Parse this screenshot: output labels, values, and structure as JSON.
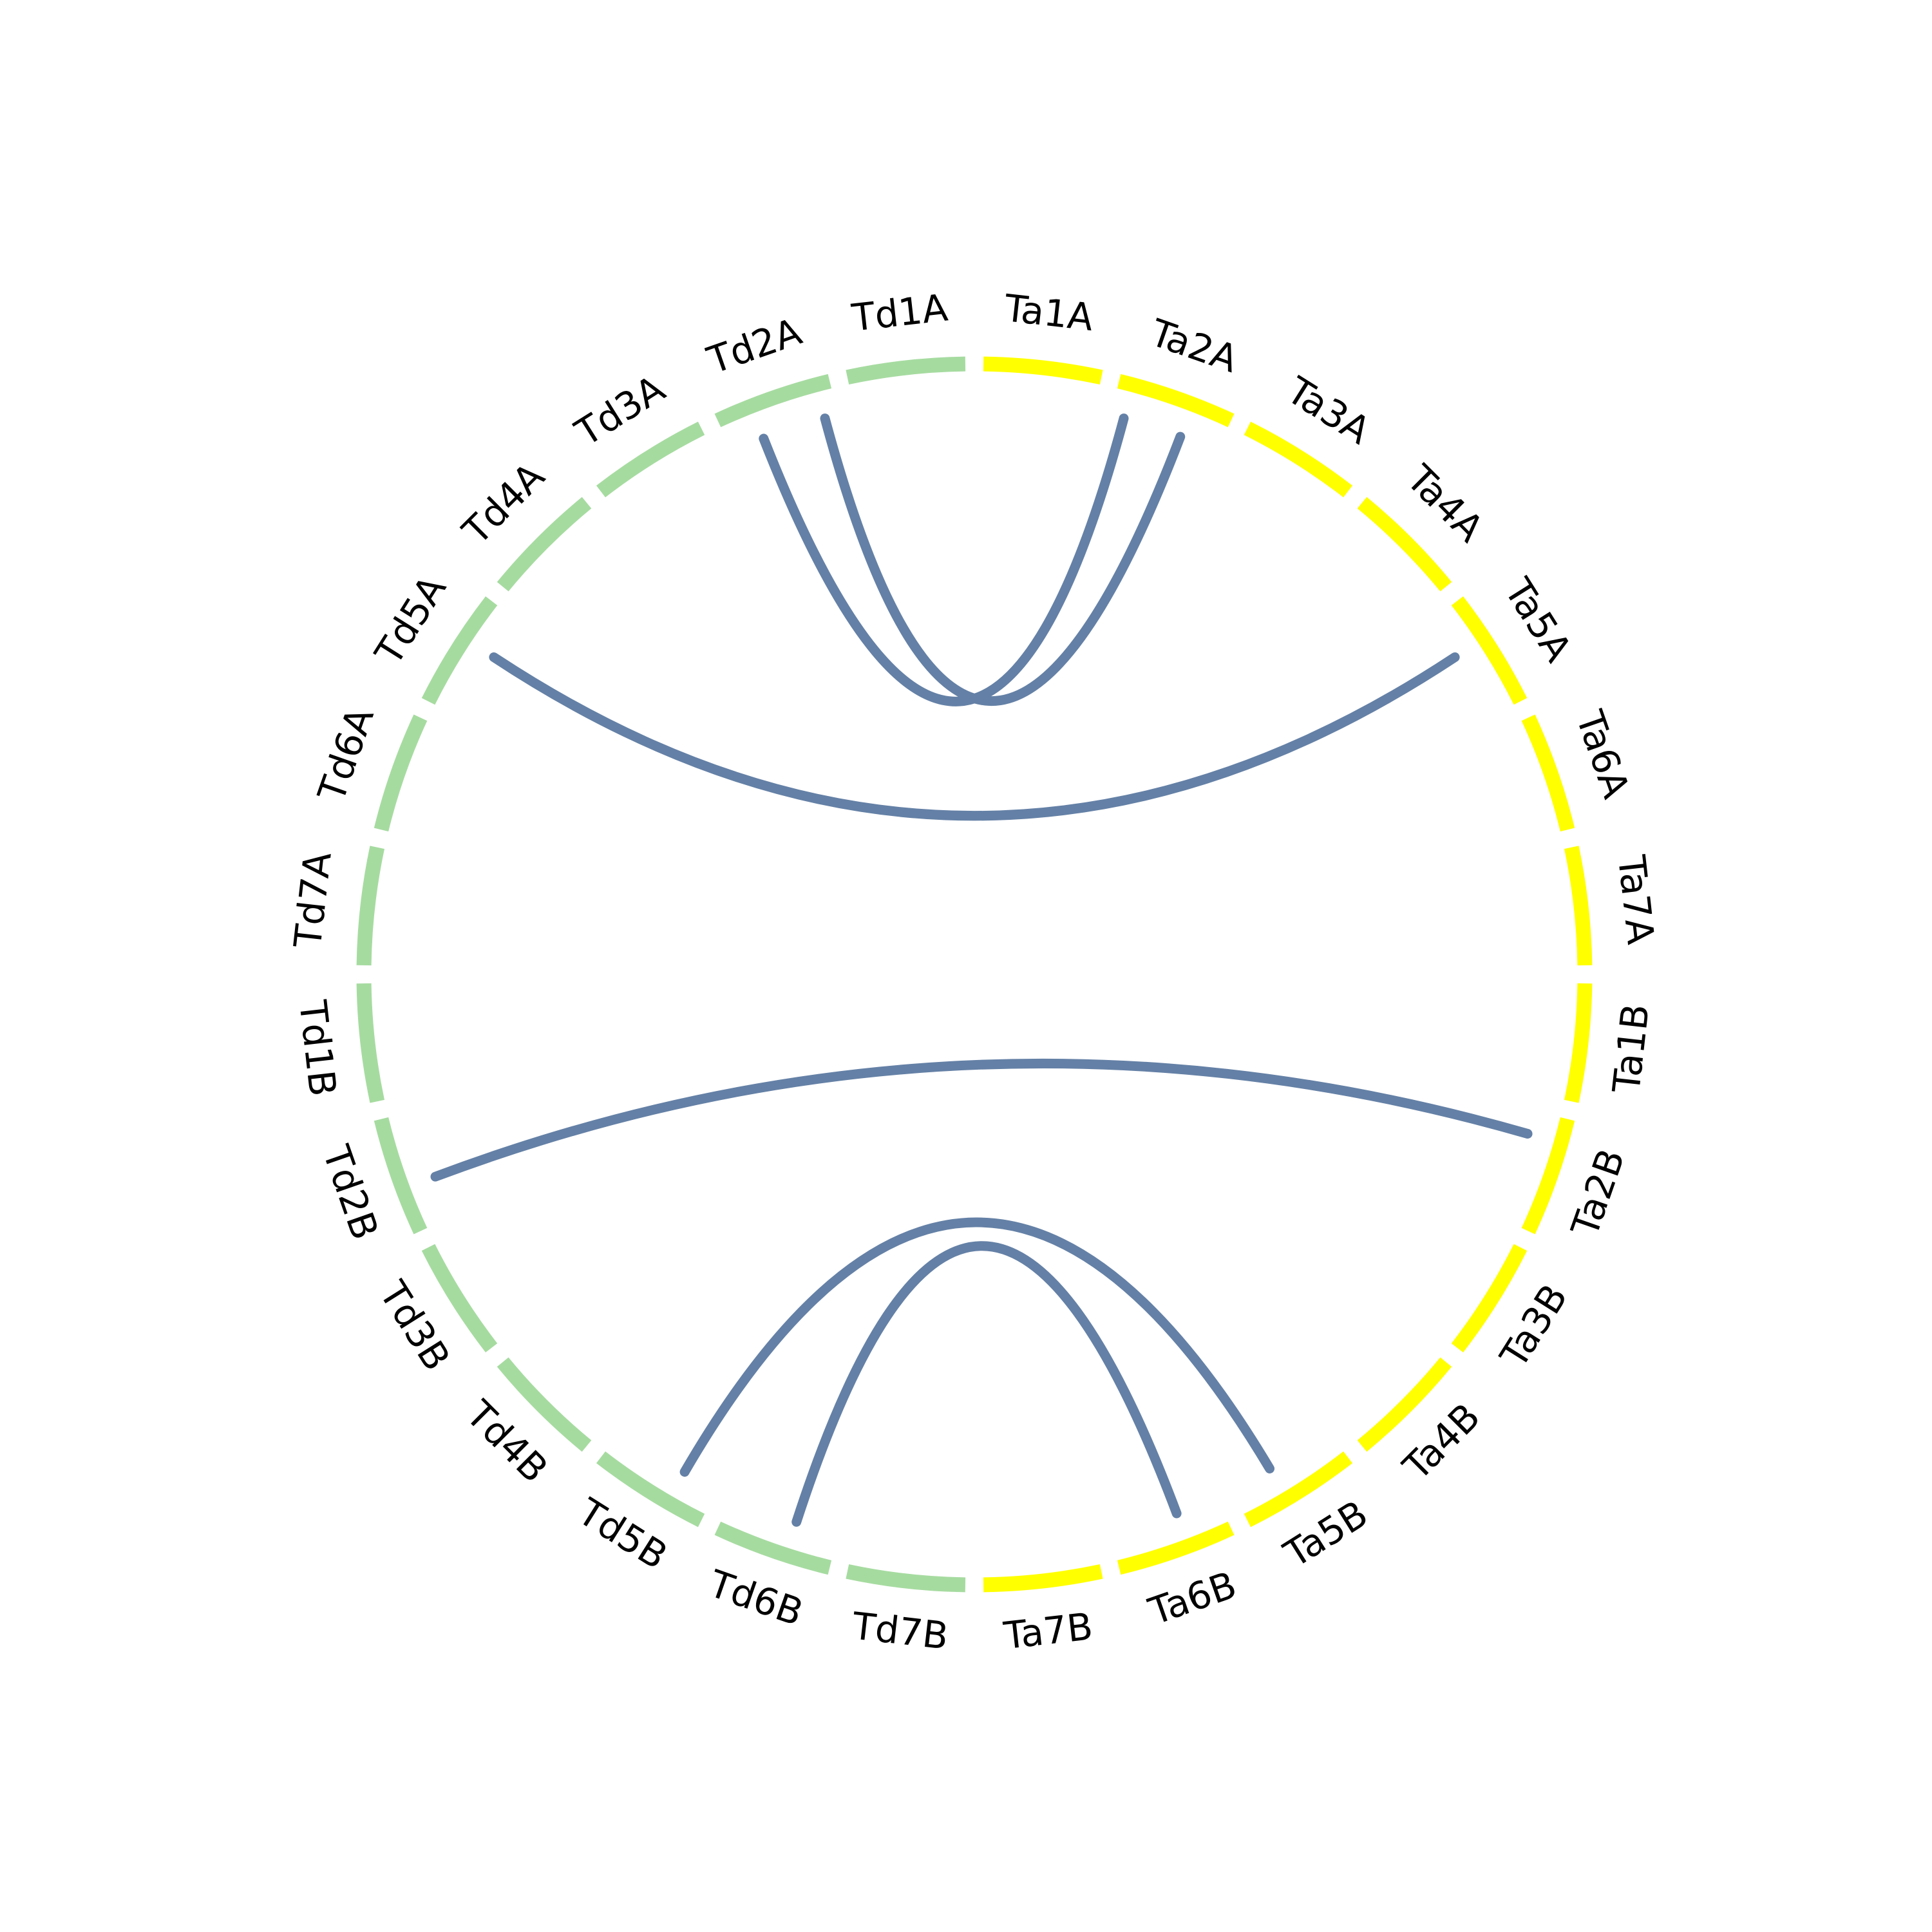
{
  "segments": [
    {
      "label": "Ta1A",
      "color": "#ffff00"
    },
    {
      "label": "Ta2A",
      "color": "#ffff00"
    },
    {
      "label": "Ta3A",
      "color": "#ffff00"
    },
    {
      "label": "Ta4A",
      "color": "#ffff00"
    },
    {
      "label": "Ta5A",
      "color": "#ffff00"
    },
    {
      "label": "Ta6A",
      "color": "#ffff00"
    },
    {
      "label": "Ta7A",
      "color": "#ffff00"
    },
    {
      "label": "Ta1B",
      "color": "#ffff00"
    },
    {
      "label": "Ta2B",
      "color": "#ffff00"
    },
    {
      "label": "Ta3B",
      "color": "#ffff00"
    },
    {
      "label": "Ta4B",
      "color": "#ffff00"
    },
    {
      "label": "Ta5B",
      "color": "#ffff00"
    },
    {
      "label": "Ta6B",
      "color": "#ffff00"
    },
    {
      "label": "Ta7B",
      "color": "#ffff00"
    },
    {
      "label": "Td7B",
      "color": "#a6dba0"
    },
    {
      "label": "Td6B",
      "color": "#a6dba0"
    },
    {
      "label": "Td5B",
      "color": "#a6dba0"
    },
    {
      "label": "Td4B",
      "color": "#a6dba0"
    },
    {
      "label": "Td3B",
      "color": "#a6dba0"
    },
    {
      "label": "Td2B",
      "color": "#a6dba0"
    },
    {
      "label": "Td1B",
      "color": "#a6dba0"
    },
    {
      "label": "Td7A",
      "color": "#a6dba0"
    },
    {
      "label": "Td6A",
      "color": "#a6dba0"
    },
    {
      "label": "Td5A",
      "color": "#a6dba0"
    },
    {
      "label": "Td4A",
      "color": "#a6dba0"
    },
    {
      "label": "Td3A",
      "color": "#a6dba0"
    },
    {
      "label": "Td2A",
      "color": "#a6dba0"
    },
    {
      "label": "Td1A",
      "color": "#a6dba0"
    }
  ],
  "link_color": "#6480a6",
  "links": [
    {
      "source": "Td2A",
      "target": "Ta2A"
    },
    {
      "source": "Td2A",
      "target": "Ta2A"
    },
    {
      "source": "Td5A",
      "target": "Ta5A"
    },
    {
      "source": "Td2B",
      "target": "Ta2B"
    },
    {
      "source": "Td5B",
      "target": "Ta5B"
    },
    {
      "source": "Td6B",
      "target": "Ta6B"
    }
  ]
}
